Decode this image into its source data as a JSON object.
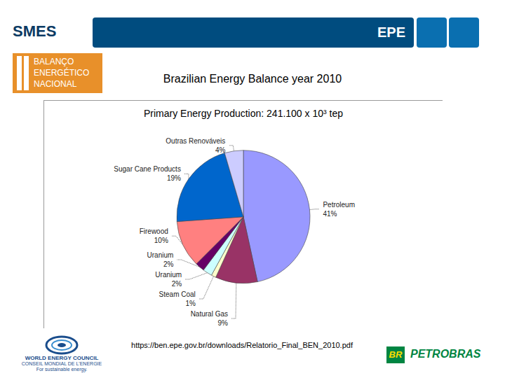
{
  "header": {
    "left": "SMES",
    "right": "EPE"
  },
  "logo": {
    "lines": [
      "BALANÇO",
      "ENERGÉTICO",
      "NACIONAL"
    ]
  },
  "heading": "Brazilian Energy Balance year 2010",
  "chart_data": {
    "type": "pie",
    "title": "Primary Energy Production: 241.100 x 10³ tep",
    "categories": [
      "Petroleum",
      "Natural Gas",
      "Steam Coal",
      "Uranium",
      "Uranium",
      "Firewood",
      "Sugar Cane Products",
      "Outras Renováveis"
    ],
    "values": [
      41,
      9,
      1,
      2,
      2,
      10,
      19,
      4
    ],
    "value_labels": [
      "41%",
      "9%",
      "1%",
      "2%",
      "2%",
      "10%",
      "19%",
      "4%"
    ],
    "colors": [
      "#9999ff",
      "#993366",
      "#ffffcc",
      "#ccffff",
      "#660066",
      "#ff8080",
      "#0066cc",
      "#ccccff"
    ],
    "data_labels": true
  },
  "source": "https://ben.epe.gov.br/downloads/Relatorio_Final_BEN_2010.pdf",
  "footer": {
    "left_logo": [
      "WORLD ENERGY COUNCIL",
      "CONSEIL MONDIAL DE L'ENERGIE",
      "For sustainable energy."
    ],
    "right_logo": {
      "badge": "BR",
      "name": "PETROBRAS"
    }
  }
}
